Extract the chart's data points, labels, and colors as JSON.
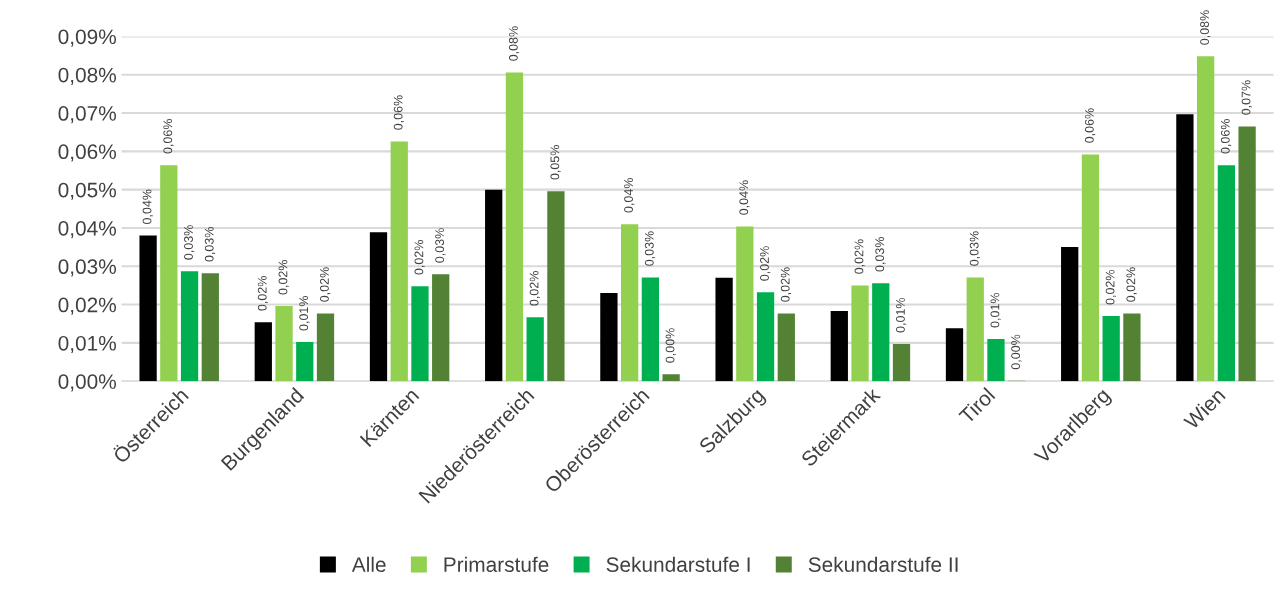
{
  "chart_data": {
    "type": "bar",
    "categories": [
      "Österreich",
      "Burgenland",
      "Kärnten",
      "Niederösterreich",
      "Oberösterreich",
      "Salzburg",
      "Steiermark",
      "Tirol",
      "Vorarlberg",
      "Wien"
    ],
    "series": [
      {
        "name": "Alle",
        "color": "#000000",
        "values": [
          0.038,
          0.0154,
          0.0389,
          0.05,
          0.023,
          0.027,
          0.0183,
          0.0138,
          0.035,
          0.0697
        ],
        "value_labels": [
          "0,04%",
          "0,02%",
          null,
          null,
          null,
          null,
          null,
          null,
          null,
          null
        ]
      },
      {
        "name": "Primarstufe",
        "color": "#92d050",
        "values": [
          0.0564,
          0.0196,
          0.0626,
          0.0806,
          0.041,
          0.0404,
          0.025,
          0.0271,
          0.0592,
          0.0848
        ],
        "value_labels": [
          "0,06%",
          "0,02%",
          "0,06%",
          "0,08%",
          "0,04%",
          "0,04%",
          "0,02%",
          "0,03%",
          "0,06%",
          "0,08%"
        ]
      },
      {
        "name": "Sekundarstufe I",
        "color": "#00b050",
        "values": [
          0.0287,
          0.0102,
          0.0248,
          0.0167,
          0.0271,
          0.0232,
          0.0256,
          0.011,
          0.017,
          0.0564
        ],
        "value_labels": [
          "0,03%",
          "0,01%",
          "0,02%",
          "0,02%",
          "0,03%",
          "0,02%",
          "0,03%",
          "0,01%",
          "0,02%",
          "0,06%"
        ]
      },
      {
        "name": "Sekundarstufe II",
        "color": "#548235",
        "values": [
          0.0282,
          0.0177,
          0.0279,
          0.0496,
          0.0018,
          0.0177,
          0.0097,
          0.0001,
          0.0177,
          0.0665
        ],
        "value_labels": [
          "0,03%",
          "0,02%",
          "0,03%",
          "0,05%",
          "0,00%",
          "0,02%",
          "0,01%",
          "0,00%",
          "0,02%",
          "0,07%"
        ]
      }
    ],
    "ylim": [
      0,
      0.09
    ],
    "yticks": [
      {
        "value": 0,
        "label": "0,00%"
      },
      {
        "value": 0.01,
        "label": "0,01%"
      },
      {
        "value": 0.02,
        "label": "0,02%"
      },
      {
        "value": 0.03,
        "label": "0,03%"
      },
      {
        "value": 0.04,
        "label": "0,04%"
      },
      {
        "value": 0.05,
        "label": "0,05%"
      },
      {
        "value": 0.06,
        "label": "0,06%"
      },
      {
        "value": 0.07,
        "label": "0,07%"
      },
      {
        "value": 0.08,
        "label": "0,08%"
      },
      {
        "value": 0.09,
        "label": "0,09%"
      }
    ],
    "grid": "y",
    "legend": "bottom"
  }
}
